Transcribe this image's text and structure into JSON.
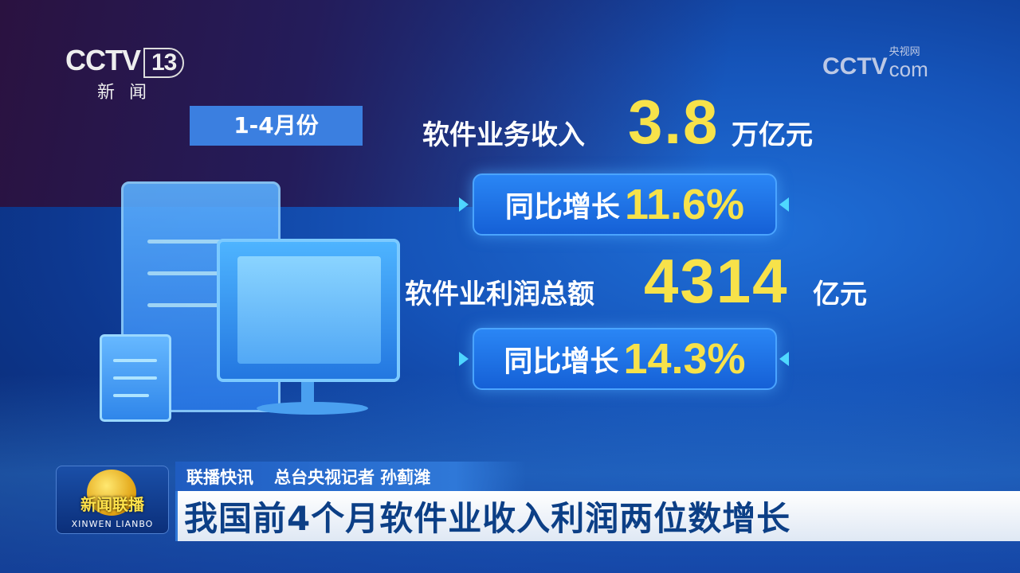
{
  "channel_logo": {
    "brand": "CCTV",
    "number": "13",
    "subtitle": "新闻"
  },
  "watermark": {
    "brand": "CCTV",
    "site": "央视网",
    "domain": "com"
  },
  "period": "1-4月份",
  "stats": [
    {
      "label": "软件业务收入",
      "value": "3.8",
      "unit": "万亿元",
      "growth_label": "同比增长",
      "growth": "11.6%"
    },
    {
      "label": "软件业利润总额",
      "value": "4314",
      "unit": "亿元",
      "growth_label": "同比增长",
      "growth": "14.3%"
    }
  ],
  "program": {
    "name": "新闻联播",
    "name_pinyin": "XINWEN LIANBO"
  },
  "lower_third": {
    "tag": "联播快讯",
    "reporter": "总台央视记者 孙蓟潍",
    "headline": "我国前4个月软件业收入利润两位数增长"
  },
  "colors": {
    "accent_yellow": "#f7e24a",
    "pill_blue": "#1f72e6",
    "arrow_cyan": "#4fd8ff",
    "headline": "#0c3f86"
  }
}
